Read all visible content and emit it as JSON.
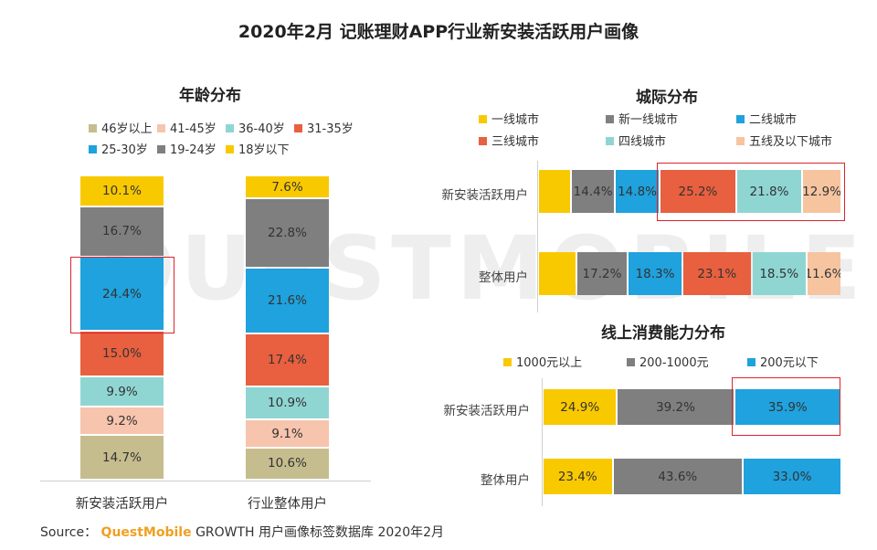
{
  "title": "2020年2月 记账理财APP行业新安装活跃用户画像",
  "watermark": "QUESTMOBILE",
  "source": {
    "prefix": "Source：",
    "brand": "QuestMobile",
    "rest": "GROWTH 用户画像标签数据库 2020年2月"
  },
  "chart_data": [
    {
      "id": "age",
      "type": "bar",
      "stacked": true,
      "title": "年龄分布",
      "categories": [
        "新安装活跃用户",
        "行业整体用户"
      ],
      "legend": [
        {
          "name": "46岁以上",
          "color": "#c6bd8e"
        },
        {
          "name": "41-45岁",
          "color": "#f7c4ad"
        },
        {
          "name": "36-40岁",
          "color": "#8fd6d3"
        },
        {
          "name": "31-35岁",
          "color": "#e8603f"
        },
        {
          "name": "25-30岁",
          "color": "#1fa2dd"
        },
        {
          "name": "19-24岁",
          "color": "#7f7f7f"
        },
        {
          "name": "18岁以下",
          "color": "#f9c900"
        }
      ],
      "series": [
        {
          "name": "46岁以上",
          "values": [
            14.7,
            10.6
          ],
          "labels": [
            "14.7%",
            "10.6%"
          ]
        },
        {
          "name": "41-45岁",
          "values": [
            9.2,
            9.1
          ],
          "labels": [
            "9.2%",
            "9.1%"
          ]
        },
        {
          "name": "36-40岁",
          "values": [
            9.9,
            10.9
          ],
          "labels": [
            "9.9%",
            "10.9%"
          ]
        },
        {
          "name": "31-35岁",
          "values": [
            15.0,
            17.4
          ],
          "labels": [
            "15.0%",
            "17.4%"
          ]
        },
        {
          "name": "25-30岁",
          "values": [
            24.4,
            21.6
          ],
          "labels": [
            "24.4%",
            "21.6%"
          ]
        },
        {
          "name": "19-24岁",
          "values": [
            16.7,
            22.8
          ],
          "labels": [
            "16.7%",
            "22.8%"
          ]
        },
        {
          "name": "18岁以下",
          "values": [
            10.1,
            7.6
          ],
          "labels": [
            "10.1%",
            "7.6%"
          ]
        }
      ],
      "highlight": {
        "category": "新安装活跃用户",
        "series": "25-30岁"
      }
    },
    {
      "id": "city",
      "type": "bar",
      "orientation": "horizontal",
      "stacked": true,
      "title": "城际分布",
      "categories": [
        "新安装活跃用户",
        "整体用户"
      ],
      "legend": [
        {
          "name": "一线城市",
          "color": "#f9c900"
        },
        {
          "name": "新一线城市",
          "color": "#7f7f7f"
        },
        {
          "name": "二线城市",
          "color": "#1fa2dd"
        },
        {
          "name": "三线城市",
          "color": "#e8603f"
        },
        {
          "name": "四线城市",
          "color": "#8fd6d3"
        },
        {
          "name": "五线及以下城市",
          "color": "#f7c4a0"
        }
      ],
      "series": [
        {
          "name": "一线城市",
          "values": [
            10.9,
            12.8
          ],
          "labels": [
            "",
            ""
          ]
        },
        {
          "name": "新一线城市",
          "values": [
            14.4,
            17.2
          ],
          "labels": [
            "14.4%",
            "17.2%"
          ]
        },
        {
          "name": "二线城市",
          "values": [
            14.8,
            18.3
          ],
          "labels": [
            "14.8%",
            "18.3%"
          ]
        },
        {
          "name": "三线城市",
          "values": [
            25.2,
            23.1
          ],
          "labels": [
            "25.2%",
            "23.1%"
          ]
        },
        {
          "name": "四线城市",
          "values": [
            21.8,
            18.5
          ],
          "labels": [
            "21.8%",
            "18.5%"
          ]
        },
        {
          "name": "五线及以下城市",
          "values": [
            12.9,
            11.6
          ],
          "labels": [
            "12.9%",
            "11.6%"
          ]
        }
      ],
      "highlight": {
        "category": "新安装活跃用户",
        "series": [
          "三线城市",
          "四线城市",
          "五线及以下城市"
        ]
      }
    },
    {
      "id": "spend",
      "type": "bar",
      "orientation": "horizontal",
      "stacked": true,
      "title": "线上消费能力分布",
      "categories": [
        "新安装活跃用户",
        "整体用户"
      ],
      "legend": [
        {
          "name": "1000元以上",
          "color": "#f9c900"
        },
        {
          "name": "200-1000元",
          "color": "#7f7f7f"
        },
        {
          "name": "200元以下",
          "color": "#1fa2dd"
        }
      ],
      "series": [
        {
          "name": "1000元以上",
          "values": [
            24.9,
            23.4
          ],
          "labels": [
            "24.9%",
            "23.4%"
          ]
        },
        {
          "name": "200-1000元",
          "values": [
            39.2,
            43.6
          ],
          "labels": [
            "39.2%",
            "43.6%"
          ]
        },
        {
          "name": "200元以下",
          "values": [
            35.9,
            33.0
          ],
          "labels": [
            "35.9%",
            "33.0%"
          ]
        }
      ],
      "highlight": {
        "category": "新安装活跃用户",
        "series": "200元以下"
      }
    }
  ]
}
